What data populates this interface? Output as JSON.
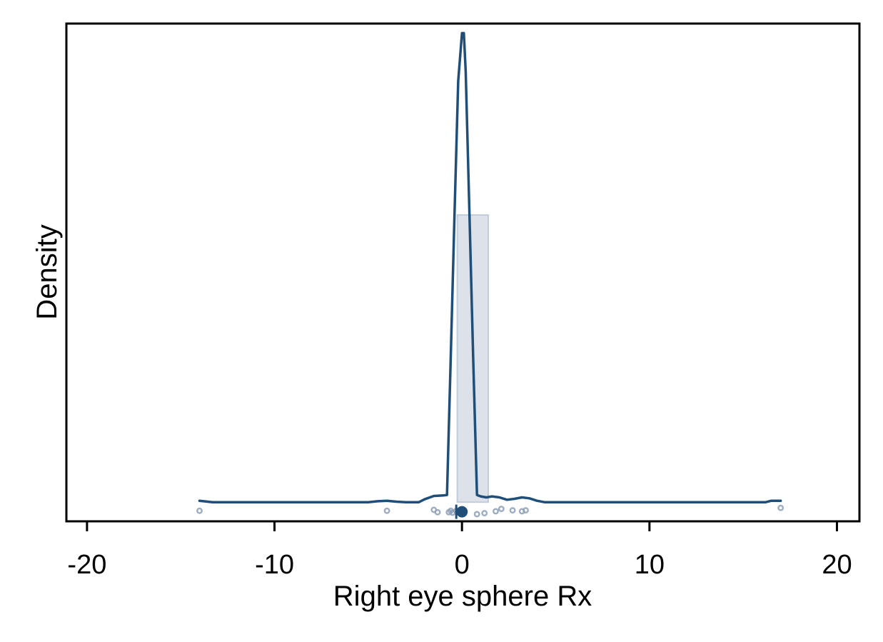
{
  "chart_data": {
    "type": "area",
    "title": "",
    "xlabel": "Right eye sphere Rx",
    "ylabel": "Density",
    "xlim": [
      -21.1,
      21.2
    ],
    "ylim": [
      -0.04,
      1.0
    ],
    "x_ticks": [
      -20,
      -10,
      0,
      10,
      20
    ],
    "x_tick_labels": [
      "-20",
      "-10",
      "0",
      "10",
      "20"
    ],
    "y_ticks": [],
    "grid": false,
    "legend": "none",
    "colors": {
      "line": "#1f4e79",
      "bar_fill": "#dde2ea",
      "bar_stroke": "#c3ccd9",
      "points": "#8e9fb5",
      "mean": "#1f4e79"
    },
    "density_curve": {
      "x": [
        -14.0,
        -13.3,
        -10,
        -5,
        -4.5,
        -4,
        -3.5,
        -3.0,
        -2.3,
        -2.0,
        -1.5,
        -1.0,
        -0.8,
        -0.6,
        -0.4,
        -0.2,
        0.0,
        0.1,
        0.2,
        0.4,
        0.6,
        0.8,
        1.0,
        1.3,
        1.6,
        2.0,
        2.4,
        2.8,
        3.2,
        3.6,
        4.0,
        4.4,
        5.0,
        10.0,
        15.0,
        16.2,
        16.5,
        17.0
      ],
      "y": [
        0.003,
        0.0,
        0.0,
        0.0,
        0.002,
        0.003,
        0.001,
        0.0,
        0.0,
        0.006,
        0.013,
        0.014,
        0.015,
        0.3,
        0.6,
        0.88,
        0.98,
        0.98,
        0.9,
        0.6,
        0.3,
        0.015,
        0.012,
        0.01,
        0.012,
        0.01,
        0.005,
        0.007,
        0.01,
        0.008,
        0.003,
        0.0,
        0.0,
        0.0,
        0.0,
        0.0,
        0.003,
        0.003
      ]
    },
    "bars": [
      {
        "x0": -0.25,
        "x1": 1.4,
        "value": 0.6
      }
    ],
    "points": {
      "x": [
        -14.0,
        -4.0,
        -1.5,
        -1.3,
        -0.7,
        -0.6,
        -0.5,
        -0.3,
        -0.2,
        0.0,
        0.8,
        1.2,
        1.8,
        2.1,
        2.7,
        3.2,
        3.4,
        17.0
      ],
      "y": [
        -0.018,
        -0.018,
        -0.016,
        -0.021,
        -0.021,
        -0.018,
        -0.022,
        -0.018,
        -0.02,
        -0.02,
        -0.025,
        -0.023,
        -0.019,
        -0.014,
        -0.017,
        -0.019,
        -0.017,
        -0.012
      ]
    },
    "mean_marker": {
      "x": 0.0,
      "y": -0.02
    }
  }
}
